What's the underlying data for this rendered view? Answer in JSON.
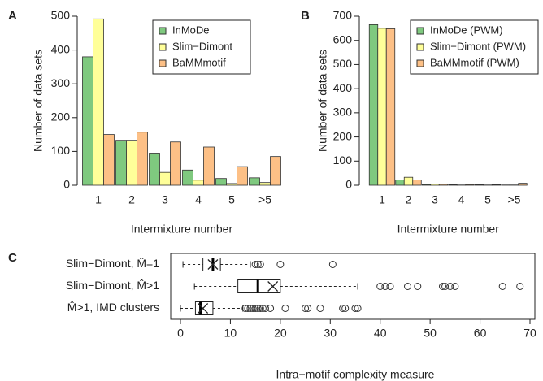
{
  "chart_data": [
    {
      "type": "bar",
      "panel": "A",
      "xlabel": "Intermixture number",
      "ylabel": "Number of data sets",
      "categories": [
        "1",
        "2",
        "3",
        "4",
        "5",
        ">5"
      ],
      "series": [
        {
          "name": "InMoDe",
          "color": "#7fc97f",
          "values": [
            380,
            133,
            95,
            45,
            20,
            22
          ]
        },
        {
          "name": "Slim−Dimont",
          "color": "#ffff99",
          "values": [
            492,
            133,
            38,
            15,
            5,
            8
          ]
        },
        {
          "name": "BaMMmotif",
          "color": "#fdc086",
          "values": [
            150,
            157,
            128,
            113,
            55,
            85
          ]
        }
      ],
      "ylim": [
        0,
        500
      ],
      "yticks": [
        0,
        100,
        200,
        300,
        400,
        500
      ],
      "legend": "top-right"
    },
    {
      "type": "bar",
      "panel": "B",
      "xlabel": "Intermixture number",
      "ylabel": "Number of data sets",
      "categories": [
        "1",
        "2",
        "3",
        "4",
        "5",
        ">5"
      ],
      "series": [
        {
          "name": "InMoDe (PWM)",
          "color": "#7fc97f",
          "values": [
            665,
            22,
            3,
            2,
            2,
            1
          ]
        },
        {
          "name": "Slim−Dimont (PWM)",
          "color": "#ffff99",
          "values": [
            650,
            33,
            5,
            1,
            1,
            1
          ]
        },
        {
          "name": "BaMMmotif (PWM)",
          "color": "#fdc086",
          "values": [
            648,
            22,
            4,
            3,
            2,
            8
          ]
        }
      ],
      "ylim": [
        0,
        700
      ],
      "yticks": [
        0,
        100,
        200,
        300,
        400,
        500,
        600,
        700
      ],
      "legend": "top-right"
    },
    {
      "type": "box",
      "panel": "C",
      "xlabel": "Intra−motif complexity measure",
      "series": [
        {
          "name": "Slim−Dimont, M̂=1",
          "whisker_low": 0.5,
          "q1": 4.5,
          "median": 6.5,
          "q3": 8,
          "whisker_high": 14,
          "mean": 6.5,
          "outliers": [
            15,
            15.5,
            16,
            20,
            30.5
          ]
        },
        {
          "name": "Slim−Dimont, M̂>1",
          "whisker_low": 2.8,
          "q1": 11.5,
          "median": 15.5,
          "q3": 20,
          "whisker_high": 35.5,
          "mean": 18.5,
          "outliers": [
            40,
            41,
            42,
            45.5,
            47.5,
            52.5,
            53,
            54,
            55,
            64.5,
            68
          ]
        },
        {
          "name": "M̂>1, IMD clusters",
          "whisker_low": 0,
          "q1": 3,
          "median": 4,
          "q3": 6.5,
          "whisker_high": 12.5,
          "mean": 4.5,
          "outliers": [
            13,
            13.5,
            14,
            14.5,
            15,
            15.5,
            16,
            16.5,
            17,
            18,
            21,
            25,
            25.5,
            28,
            32.5,
            33,
            35,
            35.5
          ]
        }
      ],
      "xlim": [
        0,
        70
      ],
      "xticks": [
        0,
        10,
        20,
        30,
        40,
        50,
        60,
        70
      ]
    }
  ]
}
